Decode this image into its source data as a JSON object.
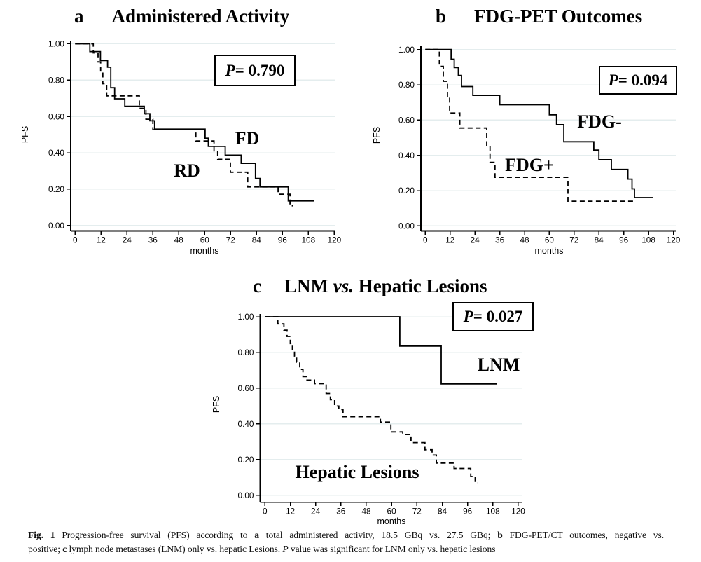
{
  "colors": {
    "curve": "#000000",
    "grid": "#e4edee",
    "text": "#000000"
  },
  "chart_data": [
    {
      "id": "a",
      "type": "line",
      "variant": "kaplan_meier_step",
      "panel_letter": "a",
      "title": "Administered Activity",
      "title_segments": [
        {
          "text": "Administered Activity"
        }
      ],
      "p_label": [
        {
          "text": "P",
          "italic": true
        },
        {
          "text": "= 0.790"
        }
      ],
      "xlabel": "months",
      "ylabel": "PFS",
      "xlim": [
        0,
        120
      ],
      "ylim": [
        0,
        1
      ],
      "grid": "horizontal",
      "xticks": [
        0,
        12,
        24,
        36,
        48,
        60,
        72,
        84,
        96,
        108,
        120
      ],
      "ytick_labels": [
        "0.00",
        "0.20",
        "0.40",
        "0.60",
        "0.80",
        "1.00"
      ],
      "series": [
        {
          "name": "FD",
          "line": "solid",
          "points": [
            [
              0,
              1.0
            ],
            [
              6.8,
              0.957
            ],
            [
              11.7,
              0.908
            ],
            [
              15.0,
              0.871
            ],
            [
              16.5,
              0.758
            ],
            [
              18.3,
              0.697
            ],
            [
              23.0,
              0.656
            ],
            [
              32.0,
              0.615
            ],
            [
              34.6,
              0.576
            ],
            [
              36.8,
              0.53
            ],
            [
              60.2,
              0.48
            ],
            [
              61.7,
              0.435
            ],
            [
              69.5,
              0.387
            ],
            [
              76.9,
              0.342
            ],
            [
              83.5,
              0.259
            ],
            [
              85.6,
              0.212
            ],
            [
              98.7,
              0.135
            ]
          ],
          "end_x": 110.5
        },
        {
          "name": "RD",
          "line": "dashed",
          "points": [
            [
              0,
              1.0
            ],
            [
              8.4,
              0.95
            ],
            [
              10.6,
              0.9
            ],
            [
              11.8,
              0.845
            ],
            [
              12.8,
              0.78
            ],
            [
              14.6,
              0.713
            ],
            [
              29.7,
              0.645
            ],
            [
              32.8,
              0.585
            ],
            [
              36.0,
              0.527
            ],
            [
              55.9,
              0.465
            ],
            [
              64.3,
              0.41
            ],
            [
              66.0,
              0.364
            ],
            [
              71.9,
              0.293
            ],
            [
              79.9,
              0.212
            ],
            [
              94.0,
              0.172
            ],
            [
              99.5,
              0.108
            ]
          ],
          "end_x": 101
        }
      ]
    },
    {
      "id": "b",
      "type": "line",
      "variant": "kaplan_meier_step",
      "panel_letter": "b",
      "title": "FDG-PET Outcomes",
      "title_segments": [
        {
          "text": "FDG-PET Outcomes"
        }
      ],
      "p_label": [
        {
          "text": "P",
          "italic": true
        },
        {
          "text": "= 0.094"
        }
      ],
      "xlabel": "months",
      "ylabel": "PFS",
      "xlim": [
        0,
        120
      ],
      "ylim": [
        0,
        1
      ],
      "grid": "horizontal",
      "xticks": [
        0,
        12,
        24,
        36,
        48,
        60,
        72,
        84,
        96,
        108,
        120
      ],
      "ytick_labels": [
        "0.00",
        "0.20",
        "0.40",
        "0.60",
        "0.80",
        "1.00"
      ],
      "series": [
        {
          "name": "FDG-",
          "line": "solid",
          "points": [
            [
              0,
              1.0
            ],
            [
              12.5,
              0.945
            ],
            [
              14.0,
              0.898
            ],
            [
              16.0,
              0.853
            ],
            [
              17.5,
              0.79
            ],
            [
              23.0,
              0.74
            ],
            [
              36.0,
              0.687
            ],
            [
              60.0,
              0.63
            ],
            [
              63.5,
              0.574
            ],
            [
              67.0,
              0.477
            ],
            [
              81.5,
              0.43
            ],
            [
              84.0,
              0.375
            ],
            [
              90.0,
              0.32
            ],
            [
              98.0,
              0.265
            ],
            [
              100.0,
              0.21
            ],
            [
              101.2,
              0.16
            ]
          ],
          "end_x": 110
        },
        {
          "name": "FDG+",
          "line": "dashed",
          "points": [
            [
              0,
              1.0
            ],
            [
              6.8,
              0.905
            ],
            [
              8.7,
              0.82
            ],
            [
              10.7,
              0.73
            ],
            [
              11.8,
              0.64
            ],
            [
              16.7,
              0.555
            ],
            [
              29.7,
              0.455
            ],
            [
              31.3,
              0.36
            ],
            [
              33.7,
              0.275
            ],
            [
              69.0,
              0.14
            ]
          ],
          "end_x": 100.8
        }
      ]
    },
    {
      "id": "c",
      "type": "line",
      "variant": "kaplan_meier_step",
      "panel_letter": "c",
      "title": "LNM vs. Hepatic Lesions",
      "title_segments": [
        {
          "text": "LNM "
        },
        {
          "text": "vs.",
          "italic": true
        },
        {
          "text": " Hepatic Lesions"
        }
      ],
      "p_label": [
        {
          "text": "P",
          "italic": true
        },
        {
          "text": "= 0.027"
        }
      ],
      "xlabel": "months",
      "ylabel": "PFS",
      "xlim": [
        0,
        120
      ],
      "ylim": [
        0,
        1
      ],
      "grid": "horizontal",
      "xticks": [
        0,
        12,
        24,
        36,
        48,
        60,
        72,
        84,
        96,
        108,
        120
      ],
      "ytick_labels": [
        "0.00",
        "0.20",
        "0.40",
        "0.60",
        "0.80",
        "1.00"
      ],
      "series": [
        {
          "name": "LNM",
          "line": "solid",
          "points": [
            [
              0,
              1.0
            ],
            [
              63.9,
              0.836
            ],
            [
              83.5,
              0.624
            ]
          ],
          "end_x": 110
        },
        {
          "name": "Hepatic Lesions",
          "line": "dashed",
          "points": [
            [
              0,
              1.0
            ],
            [
              6.1,
              0.96
            ],
            [
              9.0,
              0.925
            ],
            [
              10.5,
              0.89
            ],
            [
              12.0,
              0.85
            ],
            [
              13.0,
              0.815
            ],
            [
              14.0,
              0.78
            ],
            [
              15.0,
              0.745
            ],
            [
              16.5,
              0.705
            ],
            [
              18.0,
              0.665
            ],
            [
              19.5,
              0.645
            ],
            [
              23.5,
              0.625
            ],
            [
              29.0,
              0.57
            ],
            [
              31.0,
              0.535
            ],
            [
              33.0,
              0.5
            ],
            [
              35.0,
              0.48
            ],
            [
              37.0,
              0.44
            ],
            [
              54.7,
              0.41
            ],
            [
              59.7,
              0.355
            ],
            [
              65.3,
              0.34
            ],
            [
              69.2,
              0.295
            ],
            [
              75.8,
              0.255
            ],
            [
              79.2,
              0.225
            ],
            [
              81.2,
              0.18
            ],
            [
              89.6,
              0.15
            ],
            [
              97.5,
              0.105
            ],
            [
              99.6,
              0.07
            ]
          ],
          "end_x": 101
        }
      ]
    }
  ],
  "caption": {
    "lines": [
      [
        {
          "text": "Fig. 1",
          "bold": true
        },
        {
          "text": " Progression-free survival (PFS) according to "
        },
        {
          "text": "a",
          "bold": true
        },
        {
          "text": " total administered activity, 18.5 GBq vs. 27.5 GBq; "
        },
        {
          "text": "b",
          "bold": true
        },
        {
          "text": " FDG-PET/CT outcomes, negative vs."
        }
      ],
      [
        {
          "text": "positive; "
        },
        {
          "text": "c",
          "bold": true
        },
        {
          "text": " lymph node metastases (LNM) only vs. hepatic Lesions. "
        },
        {
          "text": "P",
          "italic": true
        },
        {
          "text": " value was significant for LNM only vs. hepatic lesions"
        }
      ]
    ]
  }
}
